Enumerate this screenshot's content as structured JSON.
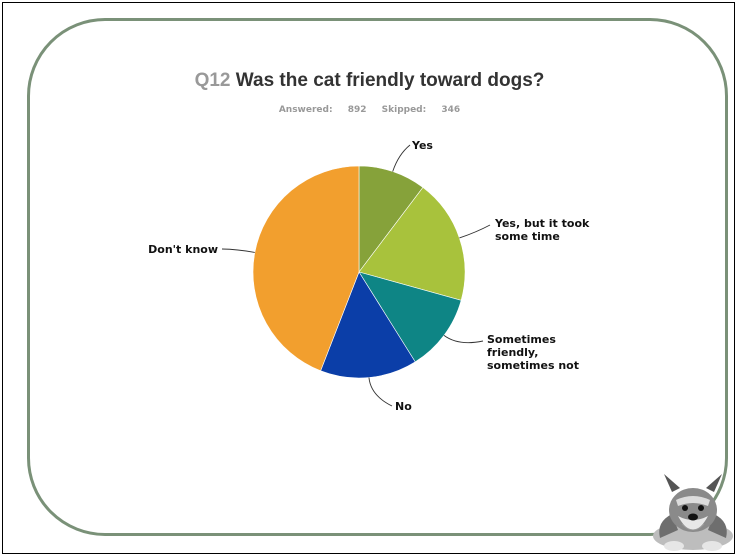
{
  "slide": {
    "question_number": "Q12",
    "question_text": "Was the cat friendly toward dogs?",
    "answered_label": "Answered:",
    "answered_count": "892",
    "skipped_label": "Skipped:",
    "skipped_count": "346"
  },
  "colors": {
    "frame": "#7a9178",
    "slices": [
      "#86a23a",
      "#a8c23c",
      "#0e8585",
      "#0b3ea8",
      "#f29f2e"
    ]
  },
  "mascot": {
    "icon": "schnauzer-dog-icon"
  },
  "chart_data": {
    "type": "pie",
    "title": "Was the cat friendly toward dogs?",
    "start_angle_deg": 0,
    "direction": "clockwise",
    "legend": "none (labels with leader lines)",
    "slices": [
      {
        "label": "Yes",
        "value": 10.3
      },
      {
        "label": "Yes, but it took some time",
        "value": 19.0
      },
      {
        "label": "Sometimes friendly, sometimes not",
        "value": 11.8
      },
      {
        "label": "No",
        "value": 14.8
      },
      {
        "label": "Don't know",
        "value": 44.1
      }
    ]
  }
}
